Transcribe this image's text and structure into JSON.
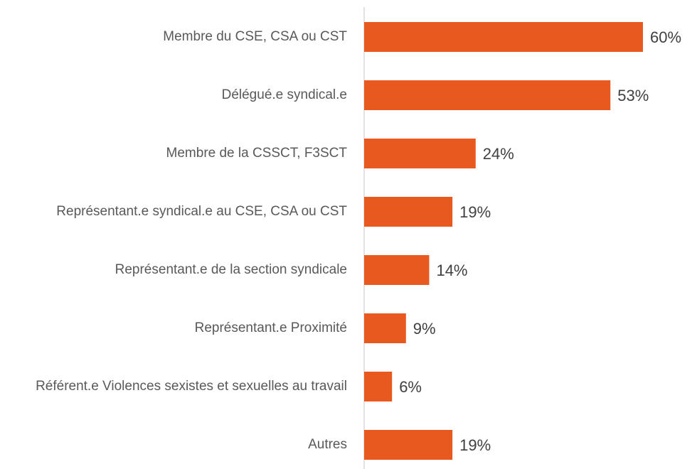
{
  "chart_data": {
    "type": "bar",
    "orientation": "horizontal",
    "categories": [
      "Membre du CSE, CSA ou CST",
      "Délégué.e syndical.e",
      "Membre de la CSSCT, F3SCT",
      "Représentant.e syndical.e au CSE, CSA ou CST",
      "Représentant.e de la section syndicale",
      "Représentant.e Proximité",
      "Référent.e Violences sexistes et sexuelles au travail",
      "Autres"
    ],
    "values": [
      60,
      53,
      24,
      19,
      14,
      9,
      6,
      19
    ],
    "value_labels": [
      "60%",
      "53%",
      "24%",
      "19%",
      "14%",
      "9%",
      "6%",
      "19%"
    ],
    "color": "#e8591f"
  }
}
